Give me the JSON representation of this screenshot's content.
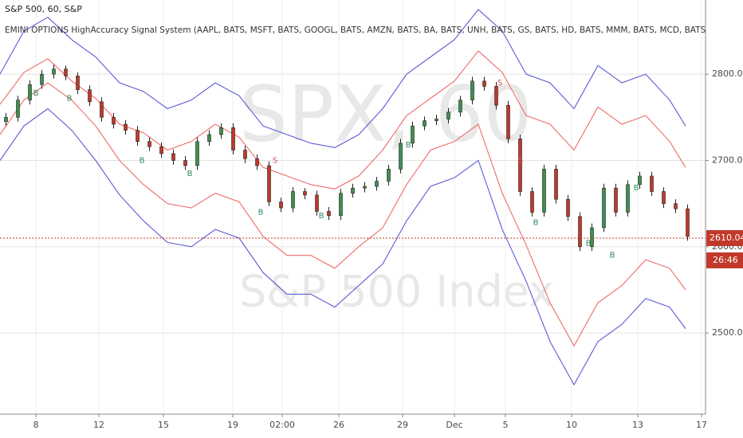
{
  "chart_data": {
    "type": "candlestick",
    "title": "S&P 500, 60, S&P",
    "subtitle": "EMINI OPTIONS HighAccuracy Signal System (AAPL, BATS, MSFT, BATS, GOOGL, BATS, AMZN, BATS, BA, BATS, UNH, BATS, GS, BATS, HD, BATS, MMM, BATS, MCD, BATS, IBM, BATS, V, BATS, CAT, B",
    "watermark": "SPX, 60",
    "watermark_subtitle": "S&P 500 Index",
    "up_color": "#3f8f4f",
    "down_color": "#c0392b",
    "candles": {
      "x": [
        0.75,
        2.25,
        3.75,
        5.25,
        6.75,
        8.25,
        9.75,
        11.25,
        12.75,
        14.25,
        15.75,
        17.25,
        18.75,
        20.25,
        21.75,
        23.25,
        24.75,
        26.25,
        27.75,
        29.25,
        30.75,
        32.25,
        33.75,
        35.25,
        36.75,
        38.25,
        39.75,
        41.25,
        42.75,
        44.25,
        45.75,
        47.25,
        48.75,
        50.25,
        51.75,
        53.25,
        54.75,
        56.25,
        57.75,
        59.25,
        60.75,
        62.25,
        63.75,
        65.25,
        66.75,
        68.25,
        69.75,
        71.25,
        72.75,
        74.25,
        75.75,
        77.25,
        78.75,
        80.25,
        81.75,
        83.25,
        84.75,
        86.25
      ],
      "open": [
        2745,
        2750,
        2770,
        2788,
        2800,
        2806,
        2798,
        2782,
        2768,
        2750,
        2742,
        2735,
        2722,
        2716,
        2708,
        2700,
        2694,
        2722,
        2730,
        2738,
        2712,
        2702,
        2694,
        2652,
        2645,
        2664,
        2660,
        2641,
        2636,
        2662,
        2668,
        2670,
        2676,
        2690,
        2720,
        2740,
        2746,
        2748,
        2756,
        2770,
        2792,
        2786,
        2764,
        2725,
        2664,
        2640,
        2690,
        2655,
        2635,
        2600,
        2622,
        2668,
        2640,
        2672,
        2682,
        2664,
        2650,
        2644
      ],
      "close": [
        2750,
        2770,
        2788,
        2800,
        2806,
        2798,
        2782,
        2768,
        2750,
        2742,
        2735,
        2722,
        2716,
        2708,
        2700,
        2694,
        2722,
        2730,
        2738,
        2712,
        2702,
        2694,
        2652,
        2645,
        2664,
        2660,
        2641,
        2636,
        2662,
        2668,
        2670,
        2676,
        2690,
        2720,
        2740,
        2746,
        2748,
        2756,
        2770,
        2792,
        2786,
        2764,
        2725,
        2664,
        2640,
        2690,
        2655,
        2635,
        2600,
        2622,
        2668,
        2640,
        2672,
        2682,
        2664,
        2650,
        2644,
        2612
      ],
      "high": [
        2755,
        2775,
        2793,
        2805,
        2811,
        2810,
        2802,
        2787,
        2773,
        2755,
        2747,
        2740,
        2727,
        2721,
        2713,
        2705,
        2727,
        2735,
        2743,
        2743,
        2717,
        2707,
        2699,
        2657,
        2669,
        2668,
        2665,
        2646,
        2667,
        2673,
        2675,
        2681,
        2695,
        2725,
        2745,
        2751,
        2753,
        2761,
        2775,
        2797,
        2797,
        2791,
        2769,
        2730,
        2669,
        2695,
        2695,
        2660,
        2640,
        2627,
        2673,
        2673,
        2677,
        2687,
        2687,
        2669,
        2655,
        2649
      ],
      "low": [
        2740,
        2745,
        2765,
        2783,
        2795,
        2793,
        2777,
        2763,
        2745,
        2737,
        2730,
        2717,
        2711,
        2703,
        2695,
        2689,
        2689,
        2717,
        2725,
        2707,
        2697,
        2689,
        2647,
        2640,
        2640,
        2655,
        2636,
        2631,
        2631,
        2657,
        2663,
        2665,
        2671,
        2685,
        2715,
        2735,
        2741,
        2743,
        2751,
        2765,
        2781,
        2759,
        2720,
        2659,
        2635,
        2635,
        2650,
        2630,
        2595,
        2595,
        2617,
        2635,
        2635,
        2667,
        2659,
        2645,
        2639,
        2607
      ]
    },
    "series": [
      {
        "name": "upper-outer",
        "color": "#5b5bd6",
        "x": [
          0,
          3,
          6,
          9,
          12,
          15,
          18,
          21,
          24,
          27,
          30,
          33,
          36,
          39,
          42,
          45,
          48,
          51,
          54,
          57,
          60,
          63,
          66,
          69,
          72,
          75,
          78,
          81,
          84,
          86
        ],
        "values": [
          2800,
          2850,
          2866,
          2840,
          2820,
          2790,
          2780,
          2760,
          2770,
          2790,
          2775,
          2740,
          2730,
          2720,
          2715,
          2730,
          2760,
          2800,
          2820,
          2840,
          2875,
          2850,
          2800,
          2790,
          2760,
          2810,
          2790,
          2800,
          2770,
          2740
        ]
      },
      {
        "name": "upper-inner",
        "color": "#ef6a6a",
        "x": [
          0,
          3,
          6,
          9,
          12,
          15,
          18,
          21,
          24,
          27,
          30,
          33,
          36,
          39,
          42,
          45,
          48,
          51,
          54,
          57,
          60,
          63,
          66,
          69,
          72,
          75,
          78,
          81,
          84,
          86
        ],
        "values": [
          2765,
          2802,
          2818,
          2792,
          2772,
          2742,
          2732,
          2712,
          2722,
          2742,
          2727,
          2692,
          2682,
          2672,
          2667,
          2682,
          2712,
          2752,
          2772,
          2792,
          2827,
          2802,
          2752,
          2742,
          2712,
          2762,
          2742,
          2752,
          2722,
          2692
        ]
      },
      {
        "name": "lower-inner",
        "color": "#ef6a6a",
        "x": [
          0,
          3,
          6,
          9,
          12,
          15,
          18,
          21,
          24,
          27,
          30,
          33,
          36,
          39,
          42,
          45,
          48,
          51,
          54,
          57,
          60,
          63,
          66,
          69,
          72,
          75,
          78,
          81,
          84,
          86
        ],
        "values": [
          2730,
          2770,
          2790,
          2770,
          2740,
          2700,
          2672,
          2650,
          2645,
          2662,
          2652,
          2612,
          2590,
          2590,
          2575,
          2600,
          2622,
          2672,
          2712,
          2722,
          2742,
          2662,
          2602,
          2535,
          2485,
          2535,
          2555,
          2585,
          2575,
          2550
        ]
      },
      {
        "name": "lower-outer",
        "color": "#5b5bd6",
        "x": [
          0,
          3,
          6,
          9,
          12,
          15,
          18,
          21,
          24,
          27,
          30,
          33,
          36,
          39,
          42,
          45,
          48,
          51,
          54,
          57,
          60,
          63,
          66,
          69,
          72,
          75,
          78,
          81,
          84,
          86
        ],
        "values": [
          2700,
          2740,
          2760,
          2735,
          2700,
          2660,
          2630,
          2605,
          2600,
          2620,
          2610,
          2570,
          2545,
          2545,
          2530,
          2555,
          2580,
          2630,
          2670,
          2680,
          2700,
          2620,
          2560,
          2490,
          2440,
          2490,
          2510,
          2540,
          2530,
          2505
        ]
      }
    ],
    "signals": [
      {
        "x": 4.5,
        "price": 2778,
        "label": "B"
      },
      {
        "x": 8.7,
        "price": 2772,
        "label": "B"
      },
      {
        "x": 17.8,
        "price": 2700,
        "label": "B"
      },
      {
        "x": 23.8,
        "price": 2685,
        "label": "B"
      },
      {
        "x": 34.5,
        "price": 2700,
        "label": "S"
      },
      {
        "x": 32.7,
        "price": 2640,
        "label": "B"
      },
      {
        "x": 40.3,
        "price": 2636,
        "label": "B"
      },
      {
        "x": 51.2,
        "price": 2718,
        "label": "B"
      },
      {
        "x": 62.7,
        "price": 2790,
        "label": "S"
      },
      {
        "x": 65.3,
        "price": 2700,
        "label": "S"
      },
      {
        "x": 67.2,
        "price": 2628,
        "label": "B"
      },
      {
        "x": 73.8,
        "price": 2604,
        "label": "B"
      },
      {
        "x": 76.8,
        "price": 2590,
        "label": "B"
      },
      {
        "x": 79.8,
        "price": 2668,
        "label": "B"
      }
    ],
    "last_price": 2610.04,
    "countdown": "26:46",
    "price_line_color": "#c0392b",
    "xlim": [
      0,
      88.5
    ],
    "ylim": [
      2406,
      2886
    ],
    "xticks": [
      {
        "value": 4.5,
        "label": "8"
      },
      {
        "value": 12.4,
        "label": "12"
      },
      {
        "value": 20.5,
        "label": "15"
      },
      {
        "value": 29.2,
        "label": "19"
      },
      {
        "value": 35.4,
        "label": "02:00"
      },
      {
        "value": 42.5,
        "label": "26"
      },
      {
        "value": 50.5,
        "label": "29"
      },
      {
        "value": 57,
        "label": "Dec"
      },
      {
        "value": 63.4,
        "label": "5"
      },
      {
        "value": 71.7,
        "label": "10"
      },
      {
        "value": 80,
        "label": "13"
      },
      {
        "value": 88,
        "label": "17"
      }
    ],
    "yticks": [
      {
        "value": 2500,
        "label": "2500.00"
      },
      {
        "value": 2600,
        "label": "2600.00"
      },
      {
        "value": 2700,
        "label": "2700.00"
      },
      {
        "value": 2800,
        "label": "2800.00"
      }
    ],
    "grid": true
  }
}
